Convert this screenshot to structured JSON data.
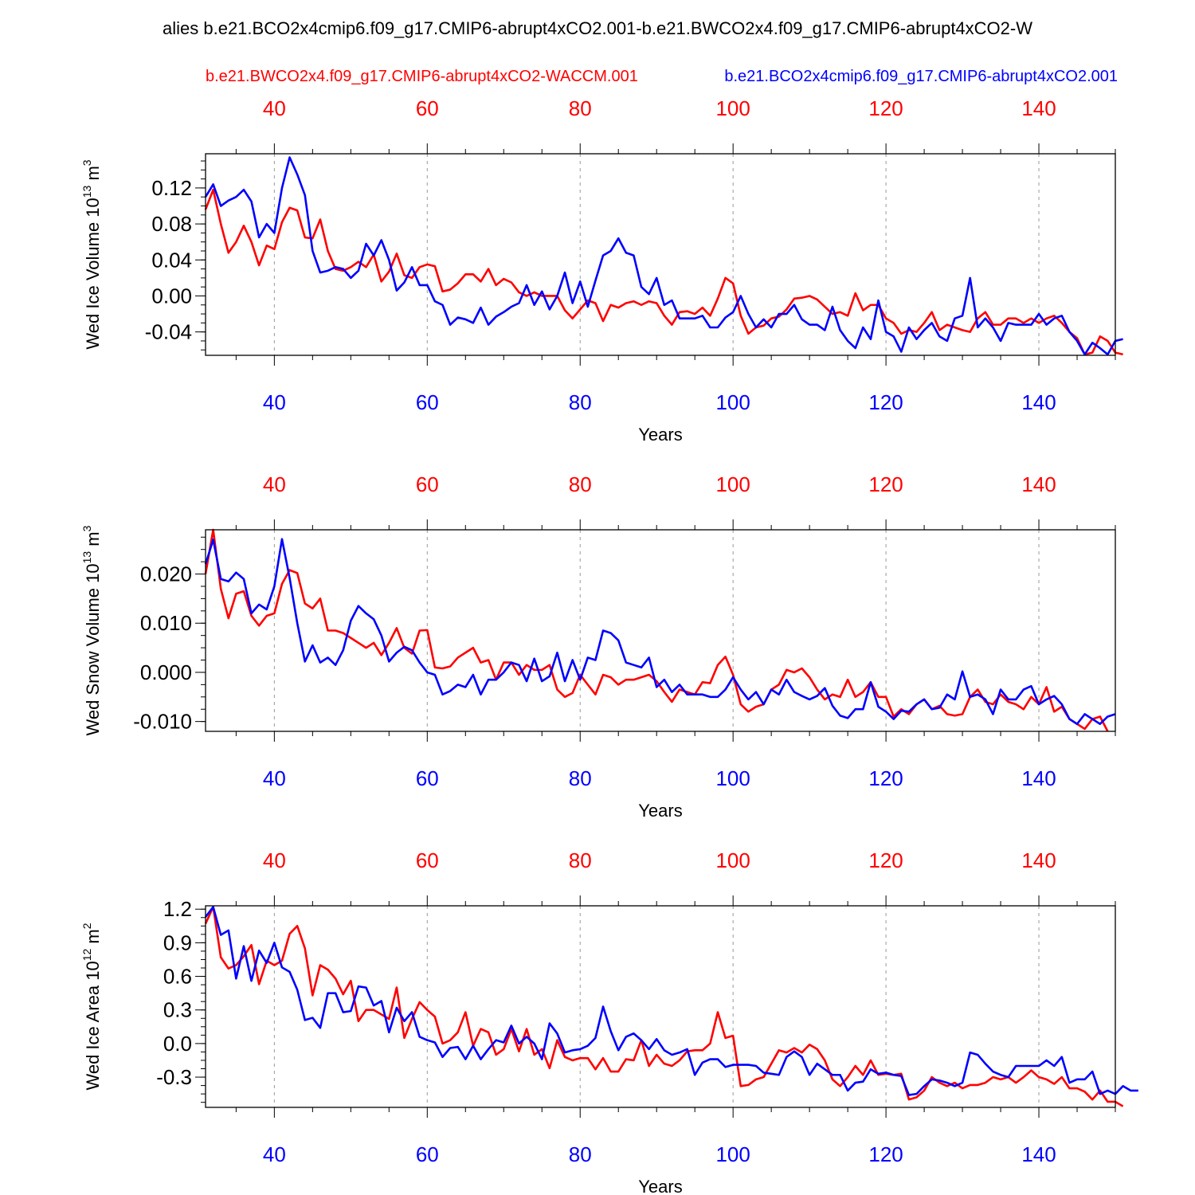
{
  "title": "alies b.e21.BCO2x4cmip6.f09_g17.CMIP6-abrupt4xCO2.001-b.e21.BWCO2x4.f09_g17.CMIP6-abrupt4xCO2-W",
  "legend": {
    "red_label": "b.e21.BWCO2x4.f09_g17.CMIP6-abrupt4xCO2-WACCM.001",
    "blue_label": "b.e21.BCO2x4cmip6.f09_g17.CMIP6-abrupt4xCO2.001"
  },
  "colors": {
    "red": "#ff0000",
    "blue": "#0000ff",
    "axis": "#000000",
    "grid": "#999999"
  },
  "x_axis": {
    "xlabel": "Years",
    "xlim": [
      31,
      150
    ],
    "ticks": [
      "40",
      "60",
      "80",
      "100",
      "120",
      "140"
    ]
  },
  "chart_data": [
    {
      "type": "line",
      "ylabel_main": "Wed Ice Volume 10",
      "ylabel_exp": "13",
      "ylabel_unit": " m",
      "ylabel_unit_exp": "3",
      "xlabel": "Years",
      "ylim": [
        -0.066,
        0.158
      ],
      "yticks": [
        "0.12",
        "0.08",
        "0.04",
        "0.00",
        "-0.04"
      ],
      "ytick_values": [
        0.12,
        0.08,
        0.04,
        0.0,
        -0.04
      ],
      "x_start": 31,
      "series": [
        {
          "name": "b.e21.BWCO2x4.f09_g17.CMIP6-abrupt4xCO2-WACCM.001",
          "color": "red",
          "values": [
            0.096,
            0.118,
            0.08,
            0.048,
            0.06,
            0.078,
            0.06,
            0.034,
            0.056,
            0.052,
            0.082,
            0.098,
            0.095,
            0.065,
            0.064,
            0.085,
            0.05,
            0.03,
            0.028,
            0.032,
            0.038,
            0.032,
            0.046,
            0.016,
            0.027,
            0.047,
            0.023,
            0.02,
            0.032,
            0.035,
            0.033,
            0.005,
            0.007,
            0.014,
            0.024,
            0.024,
            0.016,
            0.03,
            0.012,
            0.019,
            0.015,
            0.004,
            0.0,
            0.004,
            0.0,
            0.0,
            0.0,
            -0.016,
            -0.025,
            -0.015,
            -0.005,
            -0.008,
            -0.028,
            -0.01,
            -0.013,
            -0.008,
            -0.006,
            -0.01,
            -0.006,
            -0.008,
            -0.022,
            -0.032,
            -0.018,
            -0.017,
            -0.02,
            -0.013,
            -0.022,
            -0.003,
            0.02,
            0.014,
            -0.022,
            -0.042,
            -0.035,
            -0.033,
            -0.025,
            -0.023,
            -0.015,
            -0.003,
            -0.002,
            0.0,
            -0.004,
            -0.012,
            -0.02,
            -0.018,
            -0.022,
            0.003,
            -0.016,
            -0.01,
            -0.01,
            -0.025,
            -0.03,
            -0.042,
            -0.038,
            -0.04,
            -0.03,
            -0.018,
            -0.038,
            -0.032,
            -0.035,
            -0.038,
            -0.04,
            -0.025,
            -0.018,
            -0.032,
            -0.032,
            -0.025,
            -0.025,
            -0.03,
            -0.025,
            -0.03,
            -0.025,
            -0.022,
            -0.03,
            -0.04,
            -0.047,
            -0.065,
            -0.063,
            -0.045,
            -0.05,
            -0.063,
            -0.065
          ]
        },
        {
          "name": "b.e21.BCO2x4cmip6.f09_g17.CMIP6-abrupt4xCO2.001",
          "color": "blue",
          "values": [
            0.11,
            0.124,
            0.1,
            0.106,
            0.11,
            0.118,
            0.105,
            0.065,
            0.08,
            0.07,
            0.12,
            0.154,
            0.135,
            0.112,
            0.05,
            0.026,
            0.028,
            0.032,
            0.03,
            0.02,
            0.028,
            0.058,
            0.045,
            0.062,
            0.04,
            0.006,
            0.015,
            0.032,
            0.012,
            0.012,
            -0.006,
            -0.01,
            -0.032,
            -0.024,
            -0.026,
            -0.03,
            -0.013,
            -0.032,
            -0.023,
            -0.018,
            -0.012,
            -0.008,
            0.012,
            -0.01,
            0.005,
            -0.015,
            0.0,
            0.026,
            -0.008,
            0.016,
            -0.012,
            0.017,
            0.045,
            0.05,
            0.064,
            0.048,
            0.045,
            0.01,
            0.002,
            0.02,
            -0.01,
            -0.005,
            -0.025,
            -0.025,
            -0.025,
            -0.022,
            -0.035,
            -0.035,
            -0.024,
            -0.018,
            0.0,
            -0.02,
            -0.035,
            -0.026,
            -0.035,
            -0.02,
            -0.02,
            -0.01,
            -0.026,
            -0.032,
            -0.032,
            -0.038,
            -0.012,
            -0.038,
            -0.05,
            -0.058,
            -0.035,
            -0.048,
            -0.005,
            -0.04,
            -0.045,
            -0.062,
            -0.035,
            -0.048,
            -0.038,
            -0.03,
            -0.045,
            -0.05,
            -0.025,
            -0.022,
            0.02,
            -0.035,
            -0.025,
            -0.035,
            -0.05,
            -0.03,
            -0.032,
            -0.032,
            -0.032,
            -0.02,
            -0.032,
            -0.025,
            -0.022,
            -0.04,
            -0.05,
            -0.065,
            -0.052,
            -0.058,
            -0.065,
            -0.05,
            -0.048
          ]
        }
      ]
    },
    {
      "type": "line",
      "ylabel_main": "Wed Snow Volume 10",
      "ylabel_exp": "13",
      "ylabel_unit": " m",
      "ylabel_unit_exp": "3",
      "xlabel": "Years",
      "ylim": [
        -0.012,
        0.029
      ],
      "yticks": [
        "0.020",
        "0.010",
        "0.000",
        "-0.010"
      ],
      "ytick_values": [
        0.02,
        0.01,
        0.0,
        -0.01
      ],
      "x_start": 31,
      "series": [
        {
          "name": "b.e21.BWCO2x4.f09_g17.CMIP6-abrupt4xCO2-WACCM.001",
          "color": "red",
          "values": [
            0.02,
            0.029,
            0.017,
            0.011,
            0.016,
            0.0165,
            0.0115,
            0.0095,
            0.0115,
            0.012,
            0.018,
            0.0208,
            0.0202,
            0.014,
            0.013,
            0.015,
            0.0085,
            0.0085,
            0.008,
            0.007,
            0.006,
            0.005,
            0.006,
            0.0035,
            0.006,
            0.009,
            0.005,
            0.0038,
            0.0085,
            0.0086,
            0.001,
            0.0008,
            0.0012,
            0.003,
            0.004,
            0.005,
            0.002,
            0.0025,
            -0.0015,
            0.002,
            0.002,
            -0.0005,
            0.0015,
            0.0005,
            0.0005,
            0.0015,
            -0.0035,
            -0.005,
            -0.0042,
            -0.0005,
            -0.0025,
            -0.0045,
            -0.0005,
            -0.001,
            -0.0025,
            -0.0015,
            -0.0015,
            -0.001,
            -0.0005,
            -0.0018,
            -0.004,
            -0.006,
            -0.0035,
            -0.004,
            -0.0045,
            -0.002,
            -0.0022,
            0.0015,
            0.0032,
            -0.0005,
            -0.0065,
            -0.008,
            -0.007,
            -0.0065,
            -0.0035,
            -0.0025,
            0.0005,
            0.0,
            0.0008,
            -0.001,
            -0.0035,
            -0.0055,
            -0.0045,
            -0.005,
            -0.0015,
            -0.005,
            -0.004,
            -0.002,
            -0.005,
            -0.005,
            -0.009,
            -0.0075,
            -0.0085,
            -0.0065,
            -0.0055,
            -0.0075,
            -0.0068,
            -0.0085,
            -0.0088,
            -0.0085,
            -0.005,
            -0.0035,
            -0.006,
            -0.0065,
            -0.0045,
            -0.006,
            -0.0065,
            -0.0075,
            -0.005,
            -0.0065,
            -0.003,
            -0.008,
            -0.007,
            -0.0095,
            -0.0105,
            -0.0115,
            -0.0095,
            -0.009,
            -0.012
          ]
        },
        {
          "name": "b.e21.BCO2x4cmip6.f09_g17.CMIP6-abrupt4xCO2.001",
          "color": "blue",
          "values": [
            0.022,
            0.027,
            0.019,
            0.0185,
            0.0203,
            0.019,
            0.012,
            0.0138,
            0.0128,
            0.0175,
            0.0271,
            0.0192,
            0.01,
            0.0022,
            0.0055,
            0.002,
            0.003,
            0.0015,
            0.0045,
            0.0105,
            0.0135,
            0.012,
            0.0108,
            0.0075,
            0.0022,
            0.004,
            0.0052,
            0.0045,
            0.002,
            0.0,
            -0.0005,
            -0.0045,
            -0.0038,
            -0.0025,
            -0.003,
            -0.0005,
            -0.0045,
            -0.0015,
            -0.0015,
            0.0,
            0.002,
            0.0015,
            -0.0018,
            0.0028,
            -0.0018,
            -0.0008,
            0.004,
            -0.0018,
            0.0025,
            -0.0015,
            0.003,
            0.0025,
            0.0085,
            0.008,
            0.0065,
            0.002,
            0.0015,
            0.001,
            0.003,
            -0.003,
            -0.0015,
            -0.004,
            -0.0025,
            -0.0045,
            -0.0045,
            -0.0045,
            -0.005,
            -0.005,
            -0.0035,
            -0.001,
            -0.0035,
            -0.0055,
            -0.004,
            -0.0065,
            -0.0035,
            -0.0045,
            -0.0015,
            -0.004,
            -0.0048,
            -0.0055,
            -0.0048,
            -0.0032,
            -0.0068,
            -0.0088,
            -0.0093,
            -0.0075,
            -0.0075,
            -0.002,
            -0.007,
            -0.008,
            -0.0095,
            -0.0078,
            -0.008,
            -0.0065,
            -0.0055,
            -0.0075,
            -0.0072,
            -0.0045,
            -0.0055,
            0.0002,
            -0.005,
            -0.0045,
            -0.0055,
            -0.0085,
            -0.0035,
            -0.0055,
            -0.0055,
            -0.0035,
            -0.0028,
            -0.0065,
            -0.0055,
            -0.0048,
            -0.0065,
            -0.0095,
            -0.0105,
            -0.0085,
            -0.0095,
            -0.0105,
            -0.009,
            -0.0085
          ]
        }
      ]
    },
    {
      "type": "line",
      "ylabel_main": "Wed Ice Area 10",
      "ylabel_exp": "12",
      "ylabel_unit": " m",
      "ylabel_unit_exp": "2",
      "xlabel": "Years",
      "ylim": [
        -0.57,
        1.23
      ],
      "yticks": [
        "1.2",
        "0.9",
        "0.6",
        "0.3",
        "0.0",
        "-0.3"
      ],
      "ytick_values": [
        1.2,
        0.9,
        0.6,
        0.3,
        0.0,
        -0.3
      ],
      "x_start": 31,
      "series": [
        {
          "name": "b.e21.BWCO2x4.f09_g17.CMIP6-abrupt4xCO2-WACCM.001",
          "color": "red",
          "values": [
            1.07,
            1.22,
            0.77,
            0.67,
            0.7,
            0.78,
            0.88,
            0.53,
            0.74,
            0.7,
            0.74,
            0.98,
            1.05,
            0.85,
            0.43,
            0.7,
            0.66,
            0.58,
            0.44,
            0.56,
            0.2,
            0.3,
            0.3,
            0.26,
            0.22,
            0.5,
            0.05,
            0.22,
            0.37,
            0.3,
            0.24,
            0.0,
            0.03,
            0.1,
            0.28,
            -0.02,
            0.13,
            0.1,
            -0.1,
            -0.05,
            0.13,
            -0.07,
            0.13,
            -0.1,
            -0.05,
            -0.22,
            0.03,
            -0.12,
            -0.15,
            -0.13,
            -0.13,
            -0.23,
            -0.13,
            -0.25,
            -0.25,
            -0.14,
            -0.15,
            0.03,
            -0.2,
            -0.1,
            -0.18,
            -0.2,
            -0.15,
            -0.07,
            -0.06,
            -0.06,
            0.0,
            0.28,
            0.05,
            0.07,
            -0.38,
            -0.37,
            -0.32,
            -0.3,
            -0.18,
            -0.06,
            -0.08,
            -0.04,
            -0.08,
            -0.01,
            -0.05,
            -0.15,
            -0.32,
            -0.38,
            -0.3,
            -0.2,
            -0.28,
            -0.15,
            -0.28,
            -0.27,
            -0.28,
            -0.27,
            -0.5,
            -0.48,
            -0.42,
            -0.3,
            -0.35,
            -0.38,
            -0.35,
            -0.4,
            -0.37,
            -0.37,
            -0.35,
            -0.3,
            -0.32,
            -0.3,
            -0.35,
            -0.3,
            -0.24,
            -0.3,
            -0.32,
            -0.36,
            -0.3,
            -0.4,
            -0.4,
            -0.43,
            -0.5,
            -0.42,
            -0.52,
            -0.52,
            -0.56
          ]
        },
        {
          "name": "b.e21.BCO2x4cmip6.f09_g17.CMIP6-abrupt4xCO2.001",
          "color": "blue",
          "values": [
            1.13,
            1.22,
            0.97,
            1.01,
            0.58,
            0.87,
            0.56,
            0.83,
            0.72,
            0.9,
            0.68,
            0.64,
            0.48,
            0.21,
            0.23,
            0.14,
            0.45,
            0.45,
            0.28,
            0.29,
            0.51,
            0.5,
            0.34,
            0.38,
            0.1,
            0.32,
            0.2,
            0.28,
            0.06,
            0.03,
            0.01,
            -0.12,
            -0.04,
            -0.03,
            -0.14,
            -0.02,
            -0.14,
            -0.05,
            0.03,
            0.01,
            0.16,
            0.0,
            0.06,
            0.0,
            -0.14,
            0.18,
            0.09,
            -0.08,
            -0.06,
            -0.05,
            -0.02,
            0.05,
            0.33,
            0.11,
            -0.06,
            0.06,
            0.09,
            0.03,
            -0.05,
            0.04,
            -0.06,
            -0.1,
            -0.08,
            -0.05,
            -0.28,
            -0.17,
            -0.14,
            -0.14,
            -0.21,
            -0.19,
            -0.19,
            -0.19,
            -0.2,
            -0.26,
            -0.27,
            -0.28,
            -0.12,
            -0.07,
            -0.12,
            -0.28,
            -0.18,
            -0.23,
            -0.28,
            -0.28,
            -0.42,
            -0.35,
            -0.34,
            -0.23,
            -0.27,
            -0.26,
            -0.28,
            -0.29,
            -0.46,
            -0.45,
            -0.38,
            -0.32,
            -0.33,
            -0.35,
            -0.38,
            -0.35,
            -0.08,
            -0.1,
            -0.18,
            -0.25,
            -0.28,
            -0.3,
            -0.2,
            -0.2,
            -0.2,
            -0.2,
            -0.15,
            -0.2,
            -0.12,
            -0.35,
            -0.32,
            -0.32,
            -0.25,
            -0.45,
            -0.42,
            -0.45,
            -0.38,
            -0.42,
            -0.42
          ]
        }
      ]
    }
  ]
}
